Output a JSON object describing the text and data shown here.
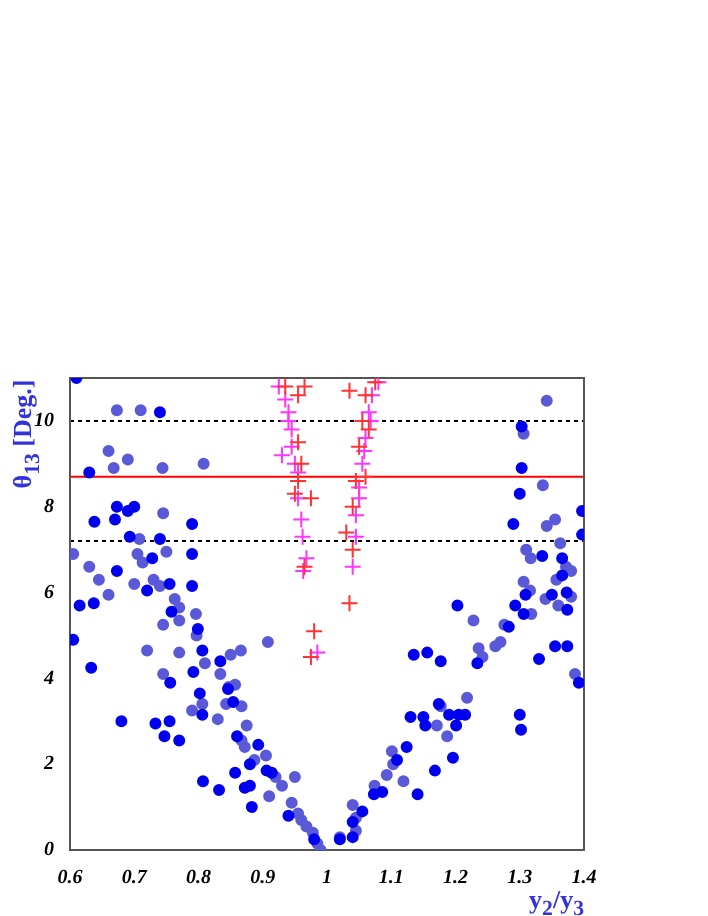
{
  "chart_data": {
    "type": "scatter",
    "xlabel": "y$_{2}$/y$_{3}$",
    "ylabel": "θ$_{13}$ [Deg.]",
    "xlim": [
      0.6,
      1.4
    ],
    "xticks": [
      0.6,
      0.7,
      0.8,
      0.9,
      1,
      1.1,
      1.2,
      1.3,
      1.4
    ],
    "ylim": [
      0,
      11
    ],
    "yticks": [
      0,
      2,
      4,
      6,
      8,
      10
    ],
    "grid": false,
    "legend": false,
    "ref_lines": [
      {
        "axis": "y",
        "value": 10,
        "color": "#000000",
        "line_style": "dotted"
      },
      {
        "axis": "y",
        "value": 8.7,
        "color": "#ff0000",
        "line_style": "solid"
      },
      {
        "axis": "y",
        "value": 7.2,
        "color": "#000000",
        "line_style": "dotted"
      }
    ],
    "series": [
      {
        "color": "#0000ee",
        "marker": "circle",
        "x": [
          0.61,
          0.605,
          0.615,
          0.63,
          0.638,
          0.637,
          0.633,
          0.673,
          0.67,
          0.673,
          0.68,
          0.69,
          0.693,
          0.7,
          0.74,
          0.74,
          0.728,
          0.72,
          0.733,
          0.755,
          0.747,
          0.77,
          0.755,
          0.758,
          0.756,
          0.79,
          0.79,
          0.79,
          0.792,
          0.799,
          0.806,
          0.807,
          0.806,
          0.802,
          0.834,
          0.832,
          0.846,
          0.854,
          0.857,
          0.86,
          0.872,
          0.88,
          0.883,
          0.88,
          0.893,
          0.906,
          0.914,
          0.94,
          0.98,
          1.02,
          1.04,
          1.303,
          1.303,
          1.3,
          1.29,
          1.397,
          1.397,
          1.335,
          1.366,
          1.366,
          1.309,
          1.35,
          1.373,
          1.374,
          1.293,
          1.306,
          1.283,
          1.355,
          1.374,
          1.33,
          1.392,
          1.203,
          1.135,
          1.156,
          1.177,
          1.234,
          1.174,
          1.19,
          1.205,
          1.215,
          1.13,
          1.15,
          1.153,
          1.201,
          1.3,
          1.302,
          1.124,
          1.109,
          1.168,
          1.196,
          1.141,
          1.086,
          1.073,
          1.055,
          1.04
        ],
        "values": [
          11.0,
          4.9,
          5.7,
          8.8,
          7.65,
          5.75,
          4.25,
          8.0,
          7.7,
          6.5,
          3.0,
          7.9,
          7.3,
          8.0,
          10.2,
          7.25,
          6.8,
          6.05,
          2.95,
          3.0,
          2.65,
          2.55,
          6.2,
          5.55,
          3.9,
          7.6,
          6.9,
          6.15,
          4.15,
          5.15,
          4.65,
          1.6,
          3.15,
          3.65,
          4.4,
          1.4,
          3.75,
          3.45,
          1.8,
          2.65,
          1.45,
          1.5,
          1.0,
          2.0,
          2.45,
          1.85,
          1.8,
          0.8,
          0.25,
          0.25,
          0.65,
          9.87,
          8.9,
          8.3,
          7.6,
          7.9,
          7.35,
          6.85,
          6.8,
          6.4,
          5.95,
          5.95,
          6.0,
          5.6,
          5.7,
          5.5,
          5.2,
          4.75,
          4.75,
          4.45,
          3.9,
          5.7,
          4.55,
          4.6,
          4.4,
          4.35,
          3.4,
          3.15,
          3.15,
          3.15,
          3.1,
          3.1,
          2.9,
          2.9,
          3.15,
          2.8,
          2.4,
          2.1,
          1.85,
          2.15,
          1.3,
          1.35,
          1.3,
          0.9,
          0.3
        ]
      },
      {
        "color": "#5a5ad8",
        "marker": "circle",
        "x": [
          0.605,
          0.66,
          0.673,
          0.71,
          0.668,
          0.69,
          0.744,
          0.808,
          0.66,
          0.645,
          0.63,
          0.705,
          0.708,
          0.713,
          0.745,
          0.75,
          0.7,
          0.72,
          0.73,
          0.74,
          0.763,
          0.77,
          0.77,
          0.745,
          0.77,
          0.745,
          0.796,
          0.797,
          0.81,
          0.806,
          0.79,
          0.834,
          0.866,
          0.85,
          0.83,
          0.847,
          0.857,
          0.843,
          0.867,
          0.875,
          0.867,
          0.872,
          0.887,
          0.905,
          0.908,
          0.91,
          0.92,
          0.93,
          0.95,
          0.945,
          0.955,
          0.96,
          0.968,
          0.978,
          0.985,
          0.99,
          1.02,
          1.04,
          1.342,
          1.306,
          1.336,
          1.342,
          1.355,
          1.363,
          1.31,
          1.317,
          1.372,
          1.38,
          1.357,
          1.306,
          1.316,
          1.34,
          1.36,
          1.38,
          1.318,
          1.276,
          1.262,
          1.27,
          1.386,
          1.228,
          1.236,
          1.242,
          1.218,
          1.177,
          1.171,
          1.187,
          1.101,
          1.103,
          1.093,
          1.119,
          1.074,
          1.045,
          1.045
        ],
        "values": [
          6.9,
          9.3,
          10.25,
          10.25,
          8.9,
          9.1,
          8.9,
          9.0,
          5.95,
          6.3,
          6.6,
          6.9,
          7.25,
          6.7,
          7.85,
          6.95,
          6.2,
          4.65,
          6.3,
          6.15,
          5.85,
          5.65,
          5.35,
          5.25,
          4.6,
          4.1,
          5.5,
          5.0,
          4.35,
          3.4,
          3.25,
          4.1,
          4.65,
          4.55,
          3.05,
          3.8,
          3.85,
          3.4,
          3.35,
          2.9,
          2.55,
          2.4,
          2.1,
          2.2,
          4.85,
          1.25,
          1.7,
          1.5,
          1.7,
          1.1,
          0.85,
          0.7,
          0.55,
          0.4,
          0.15,
          0.0,
          0.3,
          1.05,
          10.47,
          9.7,
          8.5,
          7.55,
          7.7,
          7.15,
          7.0,
          6.8,
          6.6,
          6.5,
          6.3,
          6.25,
          6.05,
          5.85,
          5.7,
          5.9,
          5.5,
          5.25,
          4.75,
          4.85,
          4.1,
          5.35,
          4.7,
          4.5,
          3.55,
          3.35,
          2.9,
          2.65,
          2.3,
          2.0,
          1.75,
          1.6,
          1.5,
          0.75,
          0.45
        ]
      },
      {
        "color": "#ff3333",
        "marker": "cross",
        "x": [
          0.935,
          0.955,
          0.965,
          0.955,
          0.96,
          0.955,
          0.95,
          0.975,
          0.965,
          0.98,
          0.975,
          1.035,
          1.03,
          1.04,
          1.04,
          1.045,
          1.05,
          1.055,
          1.06,
          1.075,
          1.035,
          1.06,
          1.065
        ],
        "values": [
          10.8,
          10.6,
          10.8,
          9.5,
          9.0,
          8.6,
          8.3,
          8.2,
          6.6,
          5.1,
          4.5,
          5.75,
          7.4,
          7.0,
          8.0,
          8.6,
          9.4,
          10.0,
          10.6,
          10.9,
          10.7,
          8.7,
          9.8
        ]
      },
      {
        "color": "#ff33ff",
        "marker": "cross",
        "x": [
          0.925,
          0.935,
          0.94,
          0.945,
          0.945,
          0.95,
          0.955,
          0.955,
          0.96,
          0.962,
          0.968,
          0.963,
          0.985,
          0.93,
          0.94,
          1.04,
          1.045,
          1.05,
          1.055,
          1.06,
          1.065,
          1.07,
          1.08,
          1.05,
          1.045,
          1.058,
          1.068
        ],
        "values": [
          10.8,
          10.5,
          10.2,
          9.8,
          9.4,
          9.0,
          8.8,
          8.2,
          7.7,
          7.3,
          6.8,
          6.5,
          4.6,
          9.2,
          10.0,
          6.6,
          7.3,
          8.2,
          9.0,
          9.6,
          10.2,
          10.6,
          10.9,
          8.45,
          7.8,
          9.3,
          10.0
        ]
      }
    ]
  }
}
